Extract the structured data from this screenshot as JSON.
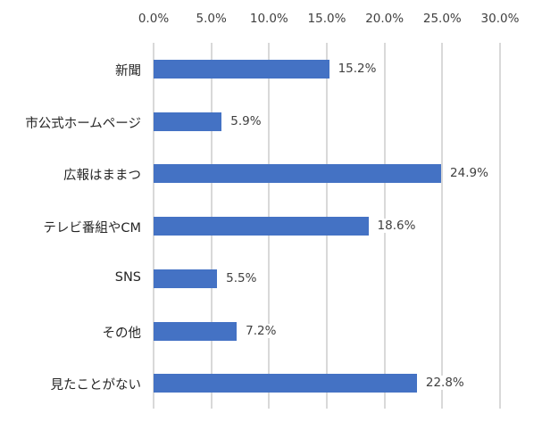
{
  "chart_data": {
    "type": "bar",
    "orientation": "horizontal",
    "title": "",
    "xlabel": "",
    "ylabel": "",
    "categories": [
      "新聞",
      "市公式ホームページ",
      "広報はままつ",
      "テレビ番組やCM",
      "SNS",
      "その他",
      "見たことがない"
    ],
    "values": [
      15.2,
      5.9,
      24.9,
      18.6,
      5.5,
      7.2,
      22.8
    ],
    "value_labels": [
      "15.2%",
      "5.9%",
      "24.9%",
      "18.6%",
      "5.5%",
      "7.2%",
      "22.8%"
    ],
    "xlim": [
      0,
      30
    ],
    "x_ticks": [
      0,
      5,
      10,
      15,
      20,
      25,
      30
    ],
    "x_tick_labels": [
      "0.0%",
      "5.0%",
      "10.0%",
      "15.0%",
      "20.0%",
      "25.0%",
      "30.0%"
    ],
    "axis_position": "top",
    "grid": true,
    "legend": null,
    "bar_color": "#4472C4",
    "grid_color": "#d9d9d9"
  }
}
